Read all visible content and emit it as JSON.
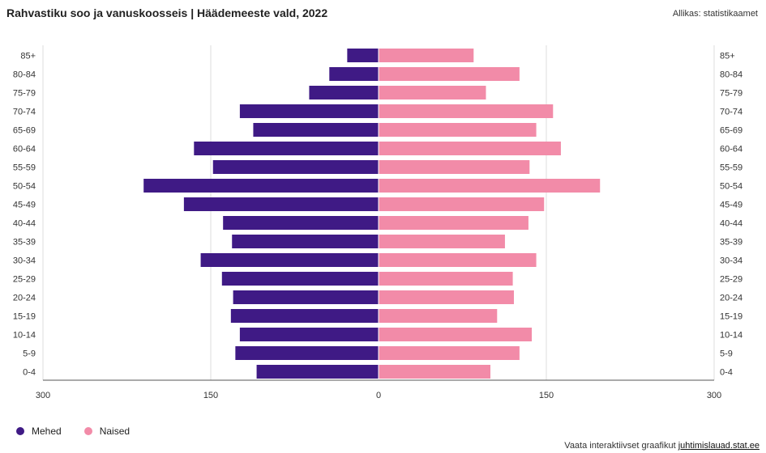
{
  "header": {
    "title": "Rahvastiku soo ja vanuskoosseis | Häädemeeste vald, 2022",
    "source": "Allikas: statistikaamet"
  },
  "footer": {
    "text": "Vaata interaktiivset graafikut ",
    "link": "juhtimislauad.stat.ee"
  },
  "colors": {
    "male": "#3f1a85",
    "female": "#f28ba8",
    "grid": "#dddddd",
    "axis": "#555555"
  },
  "chart_data": {
    "type": "bar",
    "orientation": "horizontal-pyramid",
    "title": "Rahvastiku soo ja vanuskoosseis | Häädemeeste vald, 2022",
    "categories": [
      "85+",
      "80-84",
      "75-79",
      "70-74",
      "65-69",
      "60-64",
      "55-59",
      "50-54",
      "45-49",
      "40-44",
      "35-39",
      "30-34",
      "25-29",
      "20-24",
      "15-19",
      "10-14",
      "5-9",
      "0-4"
    ],
    "series": [
      {
        "name": "Mehed",
        "color": "#3f1a85",
        "values": [
          28,
          44,
          62,
          124,
          112,
          165,
          148,
          210,
          174,
          139,
          131,
          159,
          140,
          130,
          132,
          124,
          128,
          109
        ]
      },
      {
        "name": "Naised",
        "color": "#f28ba8",
        "values": [
          85,
          126,
          96,
          156,
          141,
          163,
          135,
          198,
          148,
          134,
          113,
          141,
          120,
          121,
          106,
          137,
          126,
          100
        ]
      }
    ],
    "xlim": [
      -300,
      300
    ],
    "xticks": [
      -300,
      -150,
      0,
      150,
      300
    ],
    "xtick_labels": [
      "300",
      "150",
      "0",
      "150",
      "300"
    ],
    "grid": true,
    "legend": "bottom-left"
  }
}
